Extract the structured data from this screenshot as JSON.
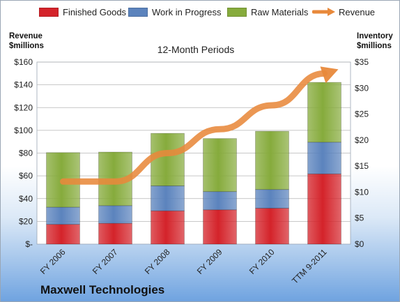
{
  "legend": [
    {
      "label": "Finished Goods",
      "color": "#d4232a"
    },
    {
      "label": "Work in Progress",
      "color": "#5b83bd"
    },
    {
      "label": "Raw Materials",
      "color": "#86ab3c"
    },
    {
      "label": "Revenue",
      "color": "#e8893b"
    }
  ],
  "left_axis_title": [
    "Revenue",
    "$millions"
  ],
  "right_axis_title": [
    "Inventory",
    "$millions"
  ],
  "subtitle": "12-Month Periods",
  "company": "Maxwell Technologies",
  "chart_data": {
    "type": "bar",
    "stacked": true,
    "categories": [
      "FY 2006",
      "FY 2007",
      "FY 2008",
      "FY 2009",
      "FY 2010",
      "TTM 9-2011"
    ],
    "series": [
      {
        "name": "Finished Goods",
        "axis": "right",
        "color": "#d4232a",
        "values": [
          3.8,
          4.0,
          6.4,
          6.6,
          6.9,
          13.5
        ]
      },
      {
        "name": "Work in Progress",
        "axis": "right",
        "color": "#5b83bd",
        "values": [
          3.3,
          3.4,
          4.8,
          3.5,
          3.6,
          6.1
        ]
      },
      {
        "name": "Raw Materials",
        "axis": "right",
        "color": "#86ab3c",
        "values": [
          10.5,
          10.3,
          10.1,
          10.2,
          11.2,
          11.5
        ]
      },
      {
        "name": "Revenue",
        "type": "line",
        "axis": "left",
        "color": "#e8893b",
        "values": [
          55,
          55,
          80,
          101,
          122,
          150
        ]
      }
    ],
    "left_axis": {
      "ticks": [
        "$-",
        "$20",
        "$40",
        "$60",
        "$80",
        "$100",
        "$120",
        "$140",
        "$160"
      ],
      "ylim": [
        0,
        160
      ]
    },
    "right_axis": {
      "ticks": [
        "$0",
        "$5",
        "$10",
        "$15",
        "$20",
        "$25",
        "$30",
        "$35"
      ],
      "ylim": [
        0,
        35
      ]
    },
    "grid": true
  }
}
